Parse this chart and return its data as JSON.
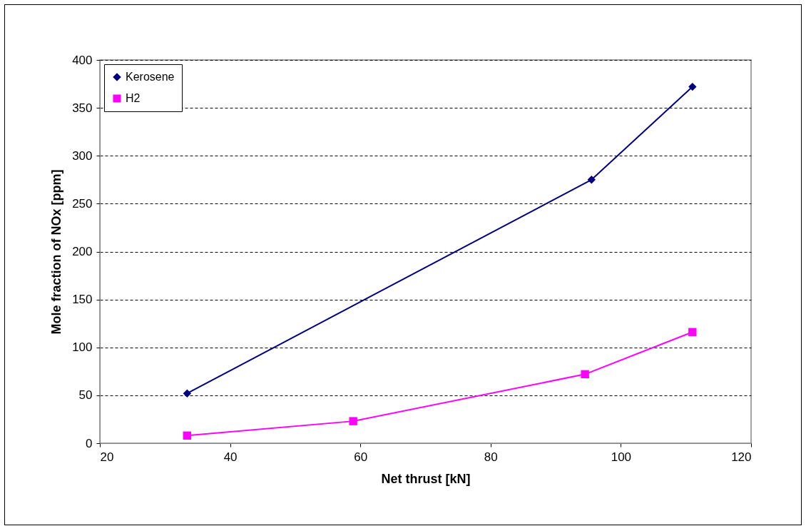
{
  "chart_data": {
    "type": "line",
    "xlabel": "Net thrust [kN]",
    "ylabel": "Mole fraction of NOx [ppm]",
    "xlim": [
      20,
      120
    ],
    "xticks": [
      20,
      40,
      60,
      80,
      100,
      120
    ],
    "ylim": [
      0,
      400
    ],
    "yticks": [
      0,
      50,
      100,
      150,
      200,
      250,
      300,
      350,
      400
    ],
    "grid": "y",
    "legend": "top left",
    "line_style": "solid",
    "series": [
      {
        "name": "Kerosene",
        "color": "#000080",
        "marker": "diamond",
        "x": [
          33.4,
          95.5,
          111
        ],
        "values": [
          52,
          275,
          372
        ]
      },
      {
        "name": "H2",
        "color": "#ff00ff",
        "marker": "square",
        "x": [
          33.4,
          58.9,
          94.5,
          111
        ],
        "values": [
          8,
          23,
          72,
          116
        ]
      }
    ]
  }
}
